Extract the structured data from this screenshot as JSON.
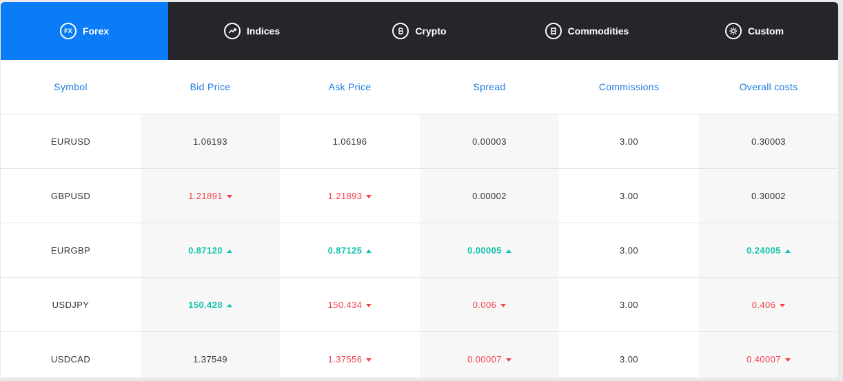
{
  "tabs": [
    {
      "label": "Forex",
      "icon": "fx-icon",
      "active": true
    },
    {
      "label": "Indices",
      "icon": "trending-up-icon",
      "active": false
    },
    {
      "label": "Crypto",
      "icon": "bitcoin-icon",
      "active": false
    },
    {
      "label": "Commodities",
      "icon": "commodities-icon",
      "active": false
    },
    {
      "label": "Custom",
      "icon": "gear-icon",
      "active": false
    }
  ],
  "fx_icon_text": "FX",
  "colors": {
    "accent": "#0a7cf7",
    "tabbar": "#252629",
    "up": "#14c4b0",
    "down": "#f2414c",
    "header_text": "#1a7be0"
  },
  "table": {
    "headers": [
      "Symbol",
      "Bid Price",
      "Ask Price",
      "Spread",
      "Commissions",
      "Overall costs"
    ],
    "rows": [
      {
        "symbol": "EURUSD",
        "bid": {
          "value": "1.06193",
          "dir": "none"
        },
        "ask": {
          "value": "1.06196",
          "dir": "none"
        },
        "spread": {
          "value": "0.00003",
          "dir": "none"
        },
        "commissions": {
          "value": "3.00",
          "dir": "none"
        },
        "overall": {
          "value": "0.30003",
          "dir": "none"
        }
      },
      {
        "symbol": "GBPUSD",
        "bid": {
          "value": "1.21891",
          "dir": "down"
        },
        "ask": {
          "value": "1.21893",
          "dir": "down"
        },
        "spread": {
          "value": "0.00002",
          "dir": "none"
        },
        "commissions": {
          "value": "3.00",
          "dir": "none"
        },
        "overall": {
          "value": "0.30002",
          "dir": "none"
        }
      },
      {
        "symbol": "EURGBP",
        "bid": {
          "value": "0.87120",
          "dir": "up"
        },
        "ask": {
          "value": "0.87125",
          "dir": "up"
        },
        "spread": {
          "value": "0.00005",
          "dir": "up"
        },
        "commissions": {
          "value": "3.00",
          "dir": "none"
        },
        "overall": {
          "value": "0.24005",
          "dir": "up"
        }
      },
      {
        "symbol": "USDJPY",
        "bid": {
          "value": "150.428",
          "dir": "up"
        },
        "ask": {
          "value": "150.434",
          "dir": "down"
        },
        "spread": {
          "value": "0.006",
          "dir": "down"
        },
        "commissions": {
          "value": "3.00",
          "dir": "none"
        },
        "overall": {
          "value": "0.406",
          "dir": "down"
        }
      },
      {
        "symbol": "USDCAD",
        "bid": {
          "value": "1.37549",
          "dir": "none"
        },
        "ask": {
          "value": "1.37556",
          "dir": "down"
        },
        "spread": {
          "value": "0.00007",
          "dir": "down"
        },
        "commissions": {
          "value": "3.00",
          "dir": "none"
        },
        "overall": {
          "value": "0.40007",
          "dir": "down"
        }
      }
    ]
  }
}
